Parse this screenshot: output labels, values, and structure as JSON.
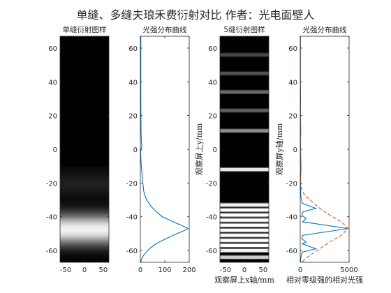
{
  "figure_title": "单缝、多缝夫琅禾费衍射对比 作者：光电面壁人",
  "chart_data": [
    {
      "type": "heatmap",
      "title": "单缝衍射图样",
      "xticks": [
        -50,
        0,
        50
      ],
      "yticks": [
        -60,
        -40,
        -20,
        0,
        20,
        40,
        60
      ],
      "xlim": [
        -65,
        65
      ],
      "ylim": [
        -67,
        67
      ],
      "center_y": -47,
      "peak_halfwidth": 9,
      "colormap": "gray"
    },
    {
      "type": "line",
      "title": "光强分布曲线",
      "xticks": [
        0,
        100,
        200
      ],
      "yticks": [
        -60,
        -40,
        -20,
        0,
        20,
        40,
        60
      ],
      "xlim": [
        0,
        200
      ],
      "ylim": [
        -67,
        67
      ],
      "series": [
        {
          "color": "#0072BD",
          "points": [
            [
              2,
              67
            ],
            [
              2,
              30
            ],
            [
              3,
              10
            ],
            [
              4,
              5
            ],
            [
              6,
              2
            ],
            [
              3,
              0
            ],
            [
              1,
              -2
            ],
            [
              2,
              -5
            ],
            [
              4,
              -10
            ],
            [
              7,
              -15
            ],
            [
              10,
              -20
            ],
            [
              14,
              -25
            ],
            [
              20,
              -28
            ],
            [
              30,
              -31
            ],
            [
              45,
              -34
            ],
            [
              65,
              -37
            ],
            [
              90,
              -40
            ],
            [
              120,
              -42
            ],
            [
              150,
              -44
            ],
            [
              175,
              -45.5
            ],
            [
              195,
              -47
            ],
            [
              175,
              -48.5
            ],
            [
              150,
              -50
            ],
            [
              120,
              -52
            ],
            [
              90,
              -54
            ],
            [
              65,
              -56
            ],
            [
              45,
              -58
            ],
            [
              30,
              -60
            ],
            [
              18,
              -62
            ],
            [
              8,
              -64
            ],
            [
              3,
              -66
            ],
            [
              2,
              -67
            ]
          ]
        }
      ]
    },
    {
      "type": "heatmap",
      "title": "5缝衍射图样",
      "xlabel": "观察屏上x轴/mm",
      "ylabel": "观察屏上y/mm",
      "xticks": [
        -50,
        0,
        50
      ],
      "yticks": [
        -60,
        -40,
        -20,
        0,
        20,
        40,
        60
      ],
      "xlim": [
        -65,
        65
      ],
      "ylim": [
        -67,
        67
      ],
      "fringes": [
        {
          "y": 56,
          "intensity": 0.28
        },
        {
          "y": 45,
          "intensity": 0.32
        },
        {
          "y": 34,
          "intensity": 0.42
        },
        {
          "y": 23,
          "intensity": 0.38
        },
        {
          "y": 11,
          "intensity": 0.55
        },
        {
          "y": -12,
          "intensity": 0.9
        },
        {
          "y": -33,
          "intensity": 0.95
        },
        {
          "y": -36,
          "intensity": 1.0
        },
        {
          "y": -39,
          "intensity": 1.0
        },
        {
          "y": -42,
          "intensity": 1.0
        },
        {
          "y": -45,
          "intensity": 1.0
        },
        {
          "y": -48,
          "intensity": 1.0
        },
        {
          "y": -51,
          "intensity": 1.0
        },
        {
          "y": -54,
          "intensity": 1.0
        },
        {
          "y": -57,
          "intensity": 1.0
        },
        {
          "y": -60,
          "intensity": 0.95
        },
        {
          "y": -64,
          "intensity": 0.8
        }
      ],
      "colormap": "gray"
    },
    {
      "type": "line",
      "title": "光强分布曲线",
      "xlabel": "相对零级强的相对光强",
      "ylabel": "观察屏y轴/mm",
      "xticks": [
        0,
        5000
      ],
      "yticks": [
        -60,
        -40,
        -20,
        0,
        20,
        40,
        60
      ],
      "xlim": [
        0,
        5000
      ],
      "ylim": [
        -67,
        67
      ],
      "series": [
        {
          "color": "#0072BD",
          "style": "solid",
          "points": [
            [
              20,
              67
            ],
            [
              20,
              40
            ],
            [
              40,
              30
            ],
            [
              20,
              20
            ],
            [
              60,
              10
            ],
            [
              20,
              5
            ],
            [
              80,
              -12
            ],
            [
              20,
              -20
            ],
            [
              60,
              -28
            ],
            [
              200,
              -32
            ],
            [
              1600,
              -35
            ],
            [
              300,
              -37
            ],
            [
              150,
              -39
            ],
            [
              600,
              -41
            ],
            [
              250,
              -43
            ],
            [
              4900,
              -47
            ],
            [
              250,
              -51
            ],
            [
              150,
              -53
            ],
            [
              600,
              -55
            ],
            [
              200,
              -56
            ],
            [
              1600,
              -59
            ],
            [
              200,
              -61
            ],
            [
              100,
              -63
            ],
            [
              50,
              -65
            ],
            [
              20,
              -67
            ]
          ]
        },
        {
          "color": "#D95319",
          "style": "dashed",
          "points": [
            [
              20,
              67
            ],
            [
              20,
              10
            ],
            [
              30,
              0
            ],
            [
              20,
              -15
            ],
            [
              30,
              -20
            ],
            [
              200,
              -25
            ],
            [
              600,
              -28
            ],
            [
              1200,
              -31
            ],
            [
              2000,
              -35
            ],
            [
              3000,
              -39
            ],
            [
              4200,
              -43
            ],
            [
              4900,
              -47
            ],
            [
              4200,
              -51
            ],
            [
              3000,
              -55
            ],
            [
              2000,
              -59
            ],
            [
              1200,
              -62
            ],
            [
              600,
              -64.5
            ],
            [
              150,
              -67
            ]
          ]
        }
      ]
    }
  ]
}
